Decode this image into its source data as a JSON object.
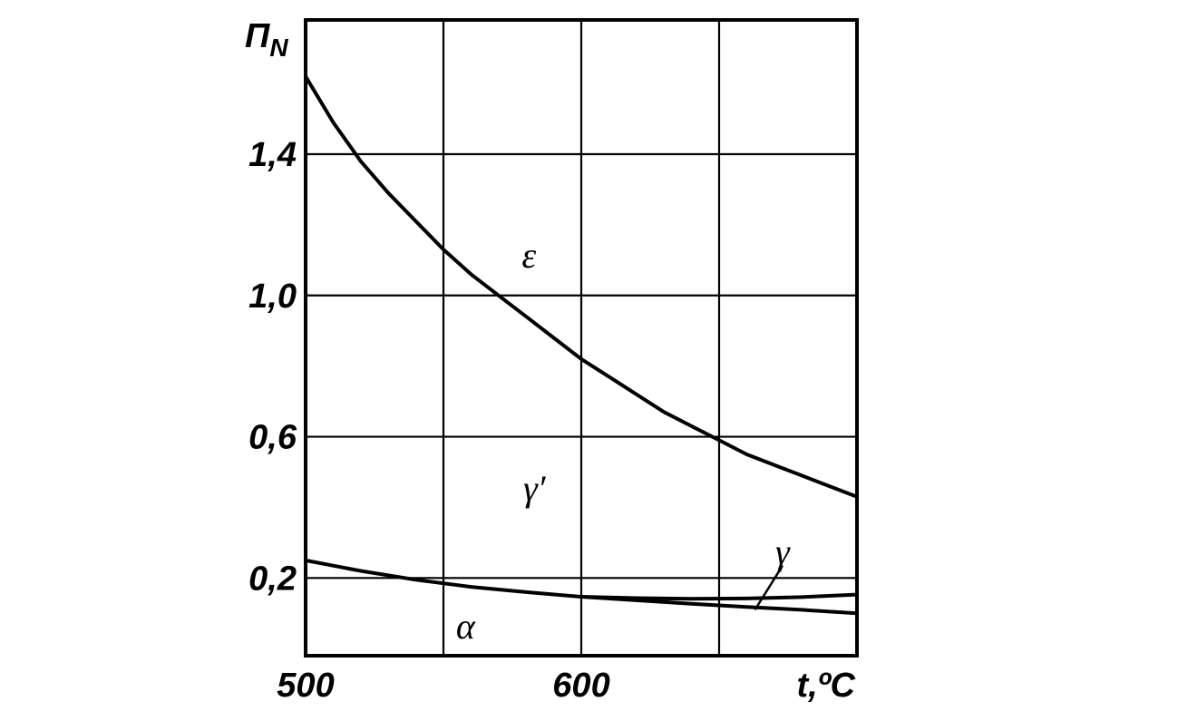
{
  "chart_data": {
    "type": "line",
    "ylabel": "П",
    "ylabel_sub": "N",
    "xlabel": "t,ºC",
    "xlim": [
      500,
      700
    ],
    "ylim": [
      -0.02,
      1.78
    ],
    "x_ticks": [
      {
        "value": 500,
        "label": "500"
      },
      {
        "value": 600,
        "label": "600"
      }
    ],
    "y_ticks": [
      {
        "value": 0.2,
        "label": "0,2"
      },
      {
        "value": 0.6,
        "label": "0,6"
      },
      {
        "value": 1.0,
        "label": "1,0"
      },
      {
        "value": 1.4,
        "label": "1,4"
      }
    ],
    "grid": true,
    "grid_x": [
      550,
      600,
      650
    ],
    "grid_y": [
      0.2,
      0.6,
      1.0,
      1.4
    ],
    "series": [
      {
        "x": [
          500,
          510,
          520,
          530,
          540,
          550,
          560,
          570,
          580,
          590,
          600,
          610,
          620,
          630,
          640,
          650,
          660,
          670,
          680,
          690,
          700
        ],
        "y": [
          1.62,
          1.49,
          1.38,
          1.29,
          1.21,
          1.13,
          1.06,
          1.0,
          0.94,
          0.88,
          0.82,
          0.77,
          0.72,
          0.67,
          0.63,
          0.59,
          0.55,
          0.52,
          0.49,
          0.46,
          0.43
        ]
      },
      {
        "x": [
          500,
          520,
          540,
          560,
          580,
          600,
          620,
          640,
          660,
          680,
          700
        ],
        "y": [
          0.25,
          0.22,
          0.195,
          0.175,
          0.16,
          0.147,
          0.137,
          0.127,
          0.118,
          0.11,
          0.1
        ]
      },
      {
        "x": [
          600,
          620,
          640,
          660,
          680,
          700
        ],
        "y": [
          0.147,
          0.143,
          0.141,
          0.142,
          0.146,
          0.153
        ]
      }
    ],
    "annotations": [
      {
        "text": "ε",
        "x": 581,
        "y": 1.11
      },
      {
        "text": "γ′",
        "x": 583,
        "y": 0.45
      },
      {
        "text": "γ",
        "x": 673,
        "y": 0.27
      },
      {
        "text": "α",
        "x": 558,
        "y": 0.06
      }
    ],
    "pointer": {
      "from": [
        673,
        0.235
      ],
      "to": [
        663,
        0.11
      ]
    }
  }
}
